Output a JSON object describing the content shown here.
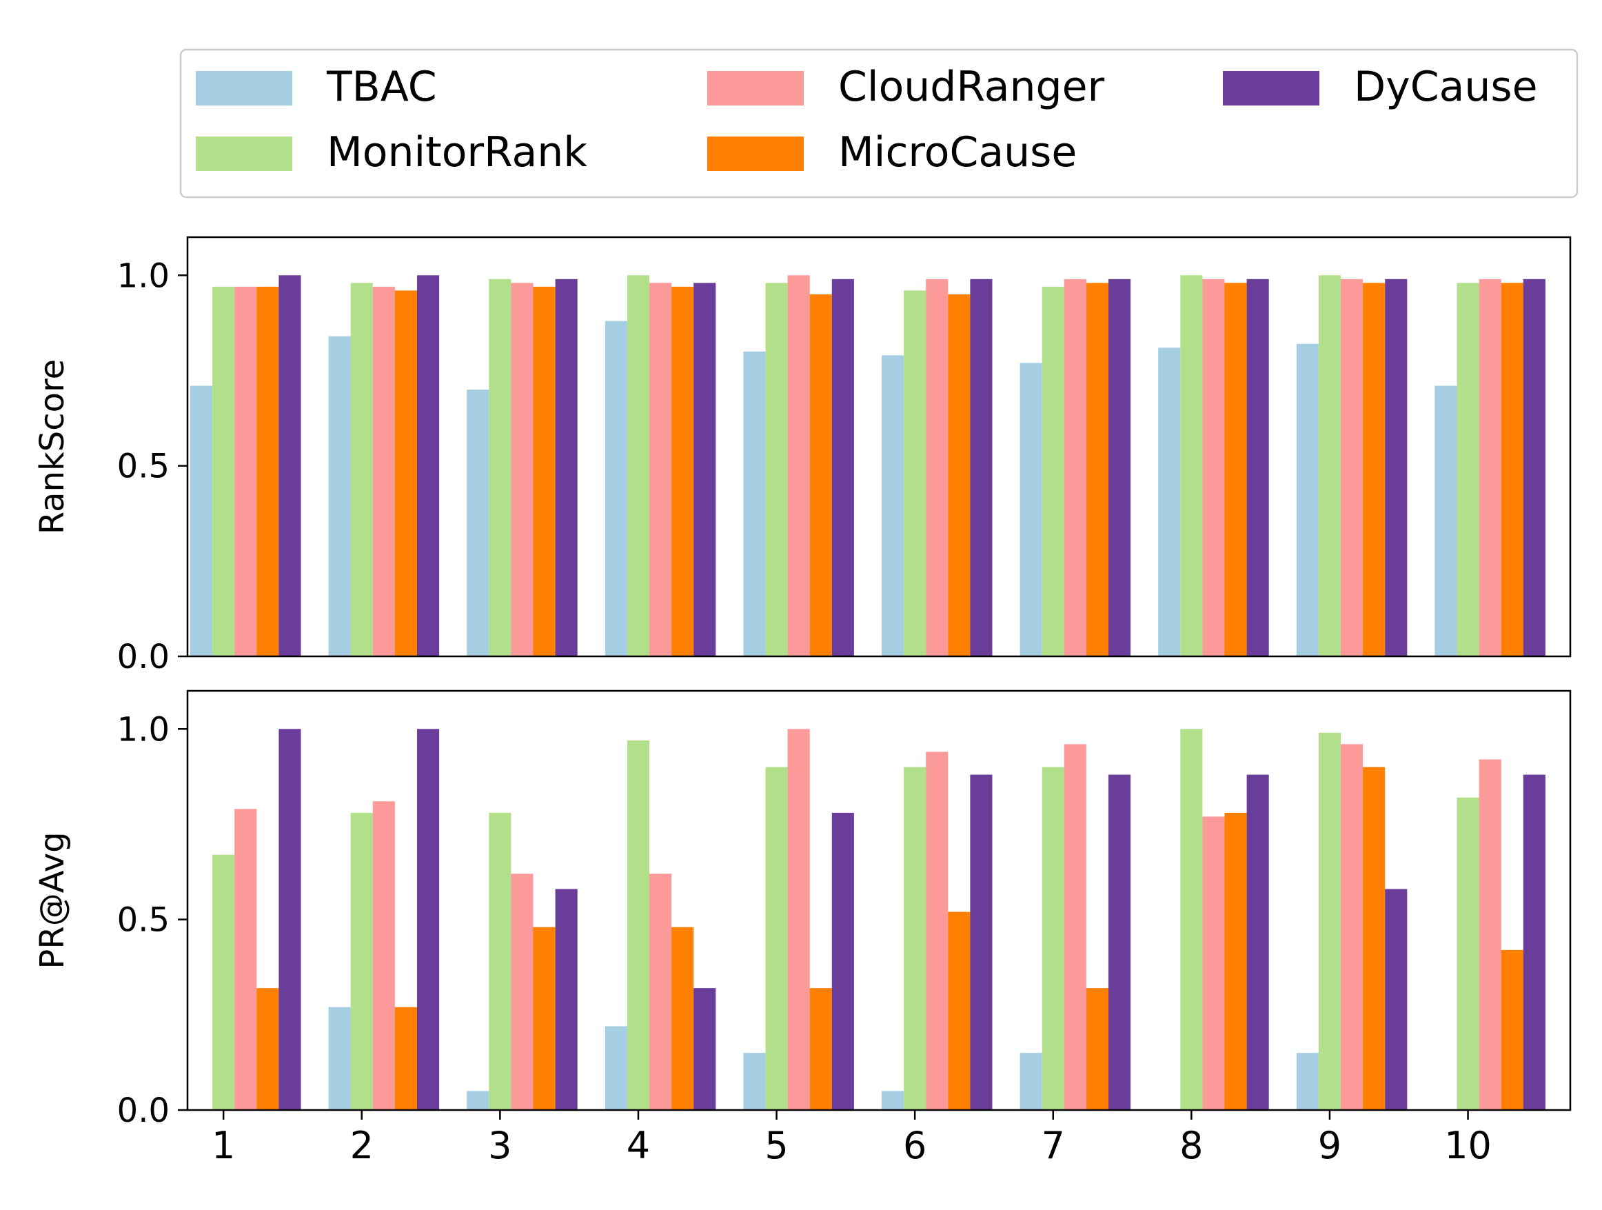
{
  "chart_data": [
    {
      "type": "bar",
      "ylabel": "RankScore",
      "ylim": [
        0,
        1.1
      ],
      "yticks": [
        "0.0",
        "0.5",
        "1.0"
      ],
      "xaxis_labels_shown": false,
      "categories": [
        "1",
        "2",
        "3",
        "4",
        "5",
        "6",
        "7",
        "8",
        "9",
        "10"
      ],
      "series": [
        {
          "name": "TBAC",
          "values": [
            0.71,
            0.84,
            0.7,
            0.88,
            0.8,
            0.79,
            0.77,
            0.81,
            0.82,
            0.71
          ]
        },
        {
          "name": "MonitorRank",
          "values": [
            0.97,
            0.98,
            0.99,
            1.0,
            0.98,
            0.96,
            0.97,
            1.0,
            1.0,
            0.98
          ]
        },
        {
          "name": "CloudRanger",
          "values": [
            0.97,
            0.97,
            0.98,
            0.98,
            1.0,
            0.99,
            0.99,
            0.99,
            0.99,
            0.99
          ]
        },
        {
          "name": "MicroCause",
          "values": [
            0.97,
            0.96,
            0.97,
            0.97,
            0.95,
            0.95,
            0.98,
            0.98,
            0.98,
            0.98
          ]
        },
        {
          "name": "DyCause",
          "values": [
            1.0,
            1.0,
            0.99,
            0.98,
            0.99,
            0.99,
            0.99,
            0.99,
            0.99,
            0.99
          ]
        }
      ]
    },
    {
      "type": "bar",
      "ylabel": "PR@Avg",
      "ylim": [
        0,
        1.1
      ],
      "yticks": [
        "0.0",
        "0.5",
        "1.0"
      ],
      "xaxis_labels_shown": true,
      "categories": [
        "1",
        "2",
        "3",
        "4",
        "5",
        "6",
        "7",
        "8",
        "9",
        "10"
      ],
      "series": [
        {
          "name": "TBAC",
          "values": [
            0.0,
            0.27,
            0.05,
            0.22,
            0.15,
            0.05,
            0.15,
            0.0,
            0.15,
            0.0
          ]
        },
        {
          "name": "MonitorRank",
          "values": [
            0.67,
            0.78,
            0.78,
            0.97,
            0.9,
            0.9,
            0.9,
            1.0,
            0.99,
            0.82
          ]
        },
        {
          "name": "CloudRanger",
          "values": [
            0.79,
            0.81,
            0.62,
            0.62,
            1.0,
            0.94,
            0.96,
            0.77,
            0.96,
            0.92
          ]
        },
        {
          "name": "MicroCause",
          "values": [
            0.32,
            0.27,
            0.48,
            0.48,
            0.32,
            0.52,
            0.32,
            0.78,
            0.9,
            0.42
          ]
        },
        {
          "name": "DyCause",
          "values": [
            1.0,
            1.0,
            0.58,
            0.32,
            0.78,
            0.88,
            0.88,
            0.88,
            0.58,
            0.88
          ]
        }
      ]
    }
  ],
  "legend": {
    "placement": "top",
    "entries": [
      {
        "label": "TBAC",
        "color": "#a6cee3"
      },
      {
        "label": "MonitorRank",
        "color": "#b2df8a"
      },
      {
        "label": "CloudRanger",
        "color": "#fb9a99"
      },
      {
        "label": "MicroCause",
        "color": "#ff7f00"
      },
      {
        "label": "DyCause",
        "color": "#6a3d9a"
      }
    ]
  }
}
